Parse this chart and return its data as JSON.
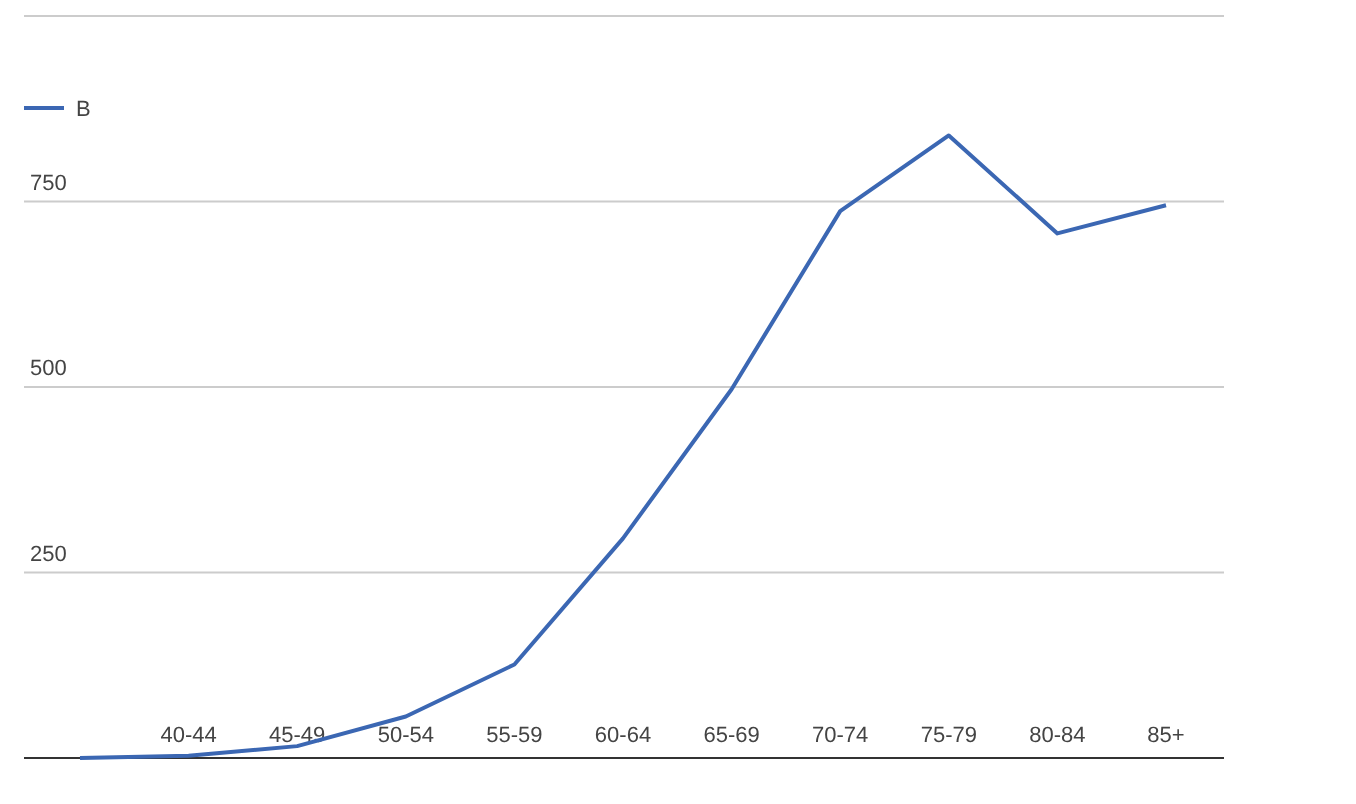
{
  "chart_data": {
    "type": "line",
    "categories": [
      null,
      "40-44",
      "45-49",
      "50-54",
      "55-59",
      "60-64",
      "65-69",
      "70-74",
      "75-79",
      "80-84",
      "85+"
    ],
    "series": [
      {
        "name": "В",
        "color": "#3b67b3",
        "values": [
          0,
          3,
          16,
          56,
          126,
          296,
          497,
          737,
          839,
          707,
          745
        ]
      }
    ],
    "ylim": [
      0,
      1000
    ],
    "yticks": [
      {
        "value": 0,
        "label": null
      },
      250,
      500,
      750,
      {
        "value": 1000,
        "label": null
      }
    ],
    "grid": "y",
    "legend": "top left",
    "marker": "none",
    "line_style": "solid"
  }
}
